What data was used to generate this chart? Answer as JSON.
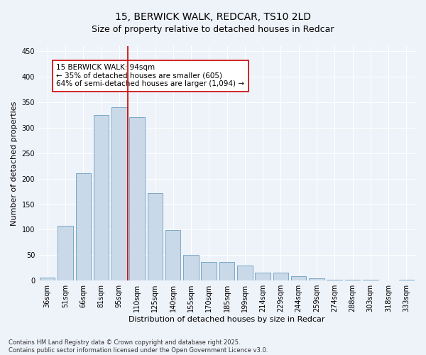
{
  "title": "15, BERWICK WALK, REDCAR, TS10 2LD",
  "subtitle": "Size of property relative to detached houses in Redcar",
  "xlabel": "Distribution of detached houses by size in Redcar",
  "ylabel": "Number of detached properties",
  "categories": [
    "36sqm",
    "51sqm",
    "66sqm",
    "81sqm",
    "95sqm",
    "110sqm",
    "125sqm",
    "140sqm",
    "155sqm",
    "170sqm",
    "185sqm",
    "199sqm",
    "214sqm",
    "229sqm",
    "244sqm",
    "259sqm",
    "274sqm",
    "288sqm",
    "303sqm",
    "318sqm",
    "333sqm"
  ],
  "values": [
    6,
    107,
    211,
    325,
    340,
    320,
    171,
    99,
    50,
    36,
    36,
    29,
    15,
    15,
    8,
    5,
    2,
    1,
    1,
    0,
    1
  ],
  "bar_color": "#c9d9e8",
  "bar_edge_color": "#7aa8c8",
  "vline_x": 4.5,
  "vline_color": "#cc0000",
  "annotation_text": "15 BERWICK WALK: 94sqm\n← 35% of detached houses are smaller (605)\n64% of semi-detached houses are larger (1,094) →",
  "annotation_box_color": "#ffffff",
  "annotation_box_edge": "#cc0000",
  "footer_line1": "Contains HM Land Registry data © Crown copyright and database right 2025.",
  "footer_line2": "Contains public sector information licensed under the Open Government Licence v3.0.",
  "background_color": "#eef2f9",
  "ylim": [
    0,
    460
  ],
  "yticks": [
    0,
    50,
    100,
    150,
    200,
    250,
    300,
    350,
    400,
    450
  ],
  "title_fontsize": 10,
  "subtitle_fontsize": 9,
  "axis_label_fontsize": 8,
  "tick_fontsize": 7,
  "annotation_fontsize": 7.5,
  "footer_fontsize": 6
}
